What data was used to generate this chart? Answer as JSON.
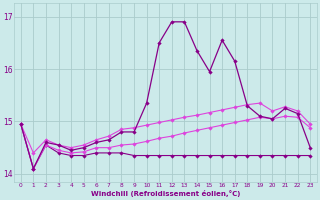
{
  "xlabel": "Windchill (Refroidissement éolien,°C)",
  "background_color": "#cceaea",
  "grid_color": "#aacccc",
  "color_dark": "#880088",
  "color_mid": "#aa22aa",
  "color_light": "#dd44dd",
  "xlim": [
    -0.5,
    23.5
  ],
  "ylim": [
    13.85,
    17.25
  ],
  "yticks": [
    14,
    15,
    16,
    17
  ],
  "xticks": [
    0,
    1,
    2,
    3,
    4,
    5,
    6,
    7,
    8,
    9,
    10,
    11,
    12,
    13,
    14,
    15,
    16,
    17,
    18,
    19,
    20,
    21,
    22,
    23
  ],
  "hours": [
    0,
    1,
    2,
    3,
    4,
    5,
    6,
    7,
    8,
    9,
    10,
    11,
    12,
    13,
    14,
    15,
    16,
    17,
    18,
    19,
    20,
    21,
    22,
    23
  ],
  "line_main": [
    14.95,
    14.1,
    14.6,
    14.55,
    14.45,
    14.5,
    14.6,
    14.65,
    14.8,
    14.8,
    15.35,
    16.5,
    16.9,
    16.9,
    16.35,
    15.95,
    16.55,
    16.15,
    15.3,
    15.1,
    15.05,
    15.25,
    15.15,
    14.5
  ],
  "line_min": [
    14.95,
    14.1,
    14.55,
    14.4,
    14.35,
    14.35,
    14.4,
    14.4,
    14.4,
    14.35,
    14.35,
    14.35,
    14.35,
    14.35,
    14.35,
    14.35,
    14.35,
    14.35,
    14.35,
    14.35,
    14.35,
    14.35,
    14.35,
    14.35
  ],
  "line_avg": [
    14.95,
    14.1,
    14.55,
    14.45,
    14.4,
    14.42,
    14.5,
    14.5,
    14.55,
    14.57,
    14.62,
    14.68,
    14.72,
    14.78,
    14.83,
    14.88,
    14.93,
    14.98,
    15.03,
    15.08,
    15.05,
    15.1,
    15.08,
    14.88
  ],
  "line_max": [
    14.95,
    14.4,
    14.65,
    14.55,
    14.5,
    14.55,
    14.65,
    14.72,
    14.85,
    14.88,
    14.93,
    14.98,
    15.03,
    15.08,
    15.12,
    15.17,
    15.22,
    15.27,
    15.32,
    15.35,
    15.2,
    15.28,
    15.2,
    14.95
  ]
}
